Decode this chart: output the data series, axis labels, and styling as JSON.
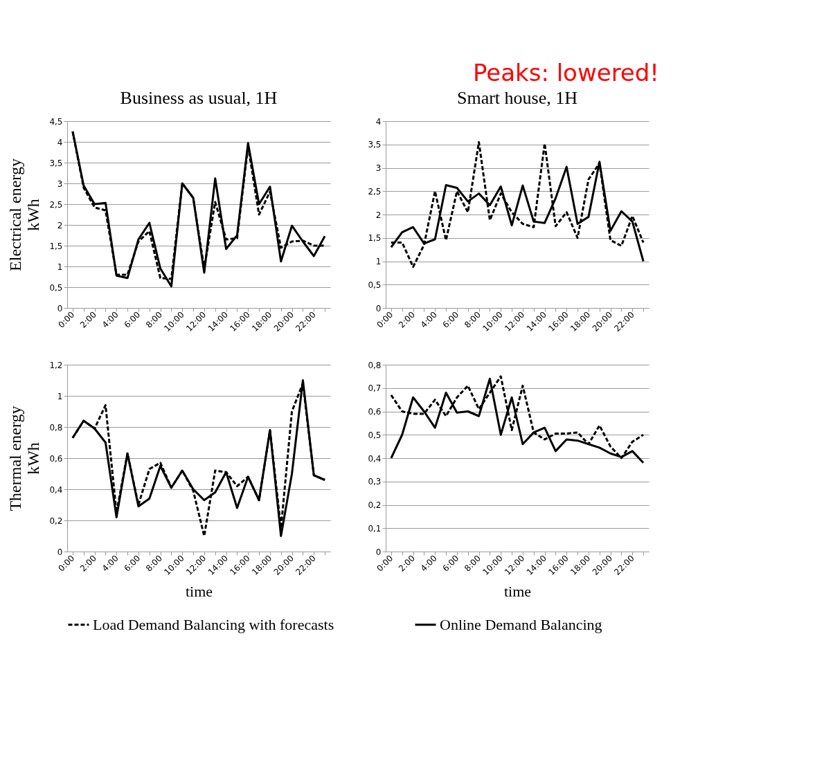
{
  "chart_data": [
    {
      "type": "line",
      "title": "Business as usual, 1H",
      "ylabel": "Electrical energy\nkWh",
      "categories": [
        "0:00",
        null,
        "2:00",
        null,
        "4:00",
        null,
        "6:00",
        null,
        "8:00",
        null,
        "10:00",
        null,
        "12:00",
        null,
        "14:00",
        null,
        "16:00",
        null,
        "18:00",
        null,
        "20:00",
        null,
        "22:00",
        null
      ],
      "series": [
        {
          "color": "#000000",
          "line_style": "dashed",
          "values": [
            4.25,
            2.9,
            2.42,
            2.35,
            0.8,
            0.8,
            1.6,
            1.85,
            0.72,
            0.7,
            3.0,
            2.65,
            0.95,
            2.55,
            1.65,
            1.68,
            3.9,
            2.25,
            2.8,
            1.45,
            1.6,
            1.62,
            1.5,
            1.5
          ]
        },
        {
          "color": "#000000",
          "line_style": "solid",
          "values": [
            4.25,
            2.95,
            2.5,
            2.53,
            0.78,
            0.72,
            1.65,
            2.05,
            0.95,
            0.52,
            3.0,
            2.65,
            0.85,
            3.12,
            1.42,
            1.75,
            3.97,
            2.5,
            2.92,
            1.12,
            1.98,
            1.6,
            1.25,
            1.73
          ]
        }
      ],
      "ylim": [
        0,
        4.5
      ],
      "yticks": [
        0,
        {
          "value": 0.5,
          "label": "0,5"
        },
        1,
        {
          "value": 1.5,
          "label": "1,5"
        },
        2,
        {
          "value": 2.5,
          "label": "2,5"
        },
        3,
        {
          "value": 3.5,
          "label": "3,5"
        },
        4,
        {
          "value": 4.5,
          "label": "4,5"
        }
      ],
      "grid": "y",
      "legend": false
    },
    {
      "type": "line",
      "title": "Smart house, 1H",
      "annotations": [
        "Peaks: lowered!"
      ],
      "categories": [
        "0:00",
        null,
        "2:00",
        null,
        "4:00",
        null,
        "6:00",
        null,
        "8:00",
        null,
        "10:00",
        null,
        "12:00",
        null,
        "14:00",
        null,
        "16:00",
        null,
        "18:00",
        null,
        "20:00",
        null,
        "22:00",
        null
      ],
      "series": [
        {
          "color": "#000000",
          "line_style": "dashed",
          "values": [
            1.4,
            1.4,
            0.88,
            1.35,
            2.5,
            1.45,
            2.5,
            2.05,
            3.55,
            1.88,
            2.45,
            2.05,
            1.8,
            1.73,
            3.52,
            1.75,
            2.05,
            1.5,
            2.75,
            3.1,
            1.45,
            1.33,
            1.97,
            1.4
          ]
        },
        {
          "color": "#000000",
          "line_style": "solid",
          "values": [
            1.3,
            1.62,
            1.73,
            1.38,
            1.47,
            2.63,
            2.57,
            2.28,
            2.45,
            2.2,
            2.6,
            1.77,
            2.62,
            1.85,
            1.82,
            2.35,
            3.02,
            1.8,
            1.95,
            3.13,
            1.65,
            2.07,
            1.85,
            1.0
          ]
        }
      ],
      "ylim": [
        0,
        4
      ],
      "yticks": [
        0,
        {
          "value": 0.5,
          "label": "0,5"
        },
        1,
        {
          "value": 1.5,
          "label": "1,5"
        },
        2,
        {
          "value": 2.5,
          "label": "2,5"
        },
        3,
        {
          "value": 3.5,
          "label": "3,5"
        },
        4
      ],
      "grid": "y",
      "legend": false
    },
    {
      "type": "line",
      "ylabel": "Thermal energy\nkWh",
      "xlabel": "time",
      "categories": [
        "0:00",
        null,
        "2:00",
        null,
        "4:00",
        null,
        "6:00",
        null,
        "8:00",
        null,
        "10:00",
        null,
        "12:00",
        null,
        "14:00",
        null,
        "16:00",
        null,
        "18:00",
        null,
        "20:00",
        null,
        "22:00",
        null
      ],
      "series": [
        {
          "name": "Load Demand Balancing with forecasts",
          "color": "#000000",
          "line_style": "dashed",
          "values": [
            0.73,
            0.84,
            0.79,
            0.94,
            0.25,
            0.63,
            0.3,
            0.53,
            0.57,
            0.41,
            0.52,
            0.39,
            0.1,
            0.52,
            0.51,
            0.42,
            0.48,
            0.33,
            0.78,
            0.15,
            0.9,
            1.08,
            0.49,
            0.46
          ]
        },
        {
          "name": "Online Demand Balancing",
          "color": "#000000",
          "line_style": "solid",
          "values": [
            0.73,
            0.84,
            0.79,
            0.7,
            0.22,
            0.63,
            0.29,
            0.34,
            0.55,
            0.41,
            0.52,
            0.4,
            0.33,
            0.38,
            0.51,
            0.28,
            0.48,
            0.33,
            0.78,
            0.1,
            0.5,
            1.1,
            0.49,
            0.46
          ]
        }
      ],
      "ylim": [
        0,
        1.2
      ],
      "yticks": [
        0,
        {
          "value": 0.2,
          "label": "0,2"
        },
        {
          "value": 0.4,
          "label": "0,4"
        },
        {
          "value": 0.6,
          "label": "0,6"
        },
        {
          "value": 0.8,
          "label": "0,8"
        },
        1,
        {
          "value": 1.2,
          "label": "1,2"
        }
      ],
      "grid": "y",
      "legend": "bottom"
    },
    {
      "type": "line",
      "xlabel": "time",
      "categories": [
        "0:00",
        null,
        "2:00",
        null,
        "4:00",
        null,
        "6:00",
        null,
        "8:00",
        null,
        "10:00",
        null,
        "12:00",
        null,
        "14:00",
        null,
        "16:00",
        null,
        "18:00",
        null,
        "20:00",
        null,
        "22:00",
        null
      ],
      "series": [
        {
          "color": "#000000",
          "line_style": "dashed",
          "values": [
            0.67,
            0.6,
            0.59,
            0.59,
            0.65,
            0.58,
            0.66,
            0.71,
            0.61,
            0.68,
            0.75,
            0.52,
            0.71,
            0.51,
            0.48,
            0.505,
            0.505,
            0.51,
            0.46,
            0.54,
            0.45,
            0.4,
            0.47,
            0.5
          ]
        },
        {
          "color": "#000000",
          "line_style": "solid",
          "values": [
            0.4,
            0.5,
            0.66,
            0.6,
            0.53,
            0.68,
            0.595,
            0.6,
            0.58,
            0.74,
            0.5,
            0.66,
            0.46,
            0.51,
            0.53,
            0.43,
            0.48,
            0.475,
            0.46,
            0.445,
            0.42,
            0.405,
            0.43,
            0.38
          ]
        }
      ],
      "ylim": [
        0,
        0.8
      ],
      "yticks": [
        0,
        {
          "value": 0.1,
          "label": "0,1"
        },
        {
          "value": 0.2,
          "label": "0,2"
        },
        {
          "value": 0.3,
          "label": "0,3"
        },
        {
          "value": 0.4,
          "label": "0,4"
        },
        {
          "value": 0.5,
          "label": "0,5"
        },
        {
          "value": 0.6,
          "label": "0,6"
        },
        {
          "value": 0.7,
          "label": "0,7"
        },
        {
          "value": 0.8,
          "label": "0,8"
        }
      ],
      "grid": "y",
      "legend": false
    }
  ]
}
